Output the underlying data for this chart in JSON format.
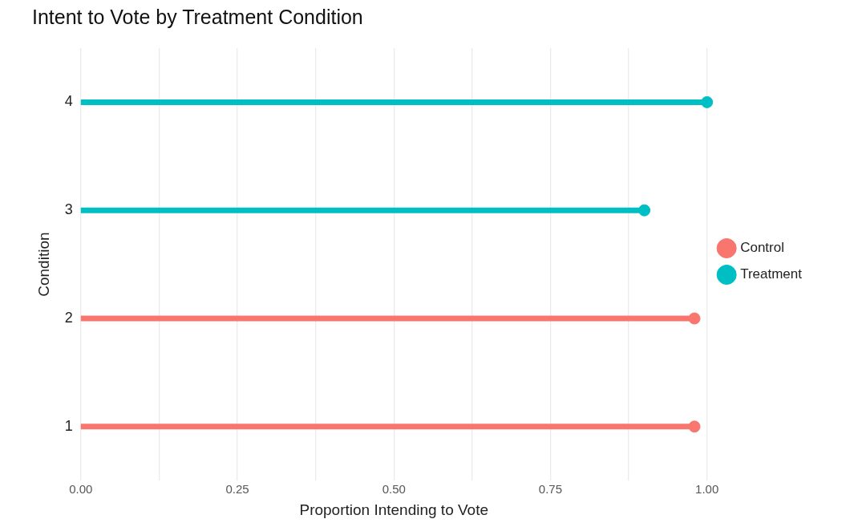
{
  "chart_data": {
    "type": "lollipop",
    "orientation": "horizontal",
    "title": "Intent to Vote by Treatment Condition",
    "xlabel": "Proportion Intending to Vote",
    "ylabel": "Condition",
    "categories": [
      "4",
      "3",
      "2",
      "1"
    ],
    "series": [
      {
        "name": "Control",
        "color": "#f8766d",
        "values": [
          null,
          null,
          0.98,
          0.98
        ]
      },
      {
        "name": "Treatment",
        "color": "#00bfc4",
        "values": [
          1.0,
          0.9,
          null,
          null
        ]
      }
    ],
    "xlim": [
      0,
      1
    ],
    "xticks": [
      {
        "value": 0,
        "label": "0.00"
      },
      {
        "value": 0.125,
        "label": null
      },
      {
        "value": 0.25,
        "label": "0.25"
      },
      {
        "value": 0.375,
        "label": null
      },
      {
        "value": 0.5,
        "label": "0.50"
      },
      {
        "value": 0.625,
        "label": null
      },
      {
        "value": 0.75,
        "label": "0.75"
      },
      {
        "value": 0.875,
        "label": null
      },
      {
        "value": 1,
        "label": "1.00"
      }
    ],
    "grid": "x",
    "legend": "right",
    "marker": "circle"
  }
}
